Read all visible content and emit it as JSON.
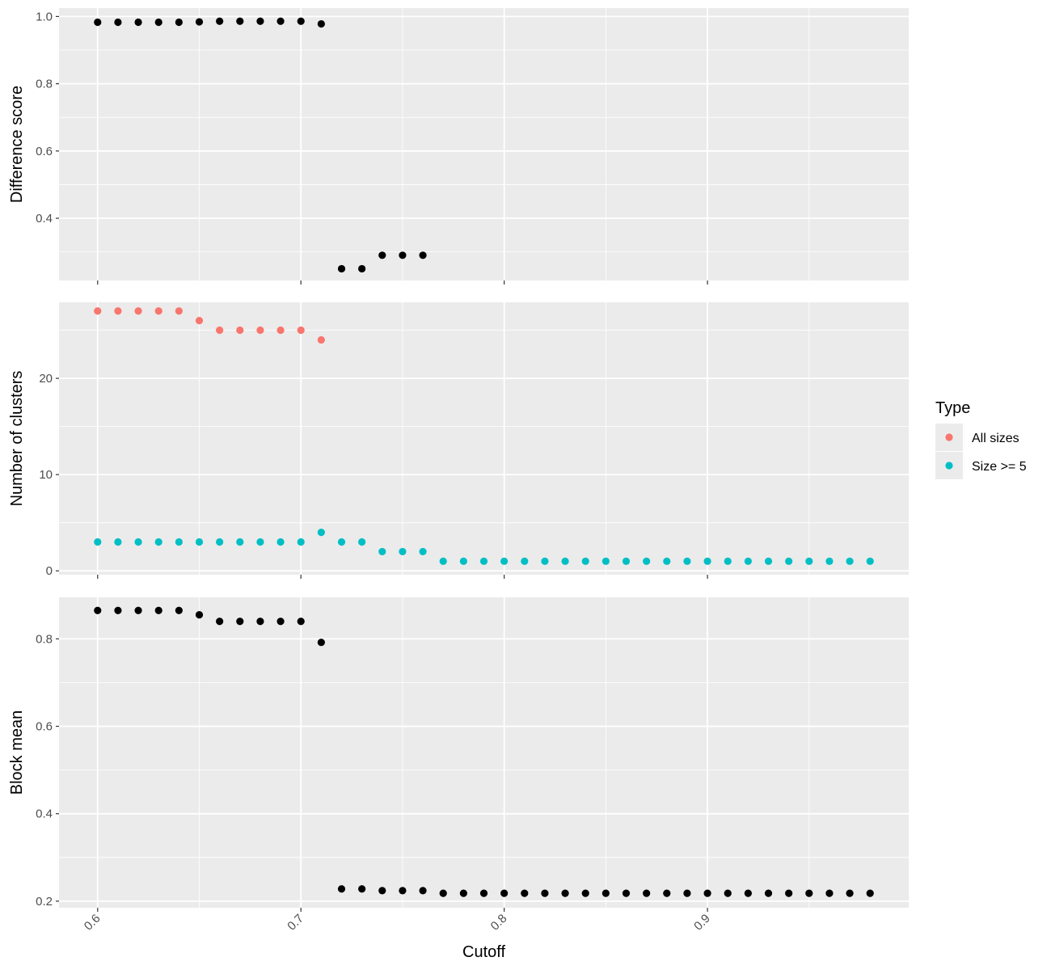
{
  "chart_data": {
    "type": "scatter",
    "xlabel": "Cutoff",
    "x_ticks": [
      0.6,
      0.7,
      0.8,
      0.9
    ],
    "x_tick_labels": [
      "0.6",
      "0.7",
      "0.8",
      "0.9"
    ],
    "xlim": [
      0.581,
      0.999
    ],
    "grid": true,
    "legend": {
      "title": "Type",
      "placement": "right",
      "entries": [
        {
          "label": "All sizes",
          "color": "#F8766D"
        },
        {
          "label": "Size >= 5",
          "color": "#00BFC4"
        }
      ]
    },
    "panels": [
      {
        "ylabel": "Difference score",
        "ylim": [
          0.215,
          1.025
        ],
        "y_ticks": [
          0.4,
          0.6,
          0.8,
          1.0
        ],
        "y_tick_labels": [
          "0.4",
          "0.6",
          "0.8",
          "1.0"
        ],
        "series": [
          {
            "color": "#000000",
            "x": [
              0.6,
              0.61,
              0.62,
              0.63,
              0.64,
              0.65,
              0.66,
              0.67,
              0.68,
              0.69,
              0.7,
              0.71,
              0.72,
              0.73,
              0.74,
              0.75,
              0.76
            ],
            "y": [
              0.983,
              0.983,
              0.983,
              0.983,
              0.983,
              0.984,
              0.986,
              0.986,
              0.986,
              0.986,
              0.986,
              0.978,
              0.25,
              0.25,
              0.29,
              0.29,
              0.29
            ]
          }
        ]
      },
      {
        "ylabel": "Number of clusters",
        "ylim": [
          -0.4,
          27.9
        ],
        "y_ticks": [
          0,
          10,
          20
        ],
        "y_tick_labels": [
          "0",
          "10",
          "20"
        ],
        "series": [
          {
            "name": "All sizes",
            "color": "#F8766D",
            "x": [
              0.6,
              0.61,
              0.62,
              0.63,
              0.64,
              0.65,
              0.66,
              0.67,
              0.68,
              0.69,
              0.7,
              0.71
            ],
            "y": [
              27,
              27,
              27,
              27,
              27,
              26,
              25,
              25,
              25,
              25,
              25,
              24
            ]
          },
          {
            "name": "Size >= 5",
            "color": "#00BFC4",
            "x": [
              0.6,
              0.61,
              0.62,
              0.63,
              0.64,
              0.65,
              0.66,
              0.67,
              0.68,
              0.69,
              0.7,
              0.71,
              0.72,
              0.73,
              0.74,
              0.75,
              0.76,
              0.77,
              0.78,
              0.79,
              0.8,
              0.81,
              0.82,
              0.83,
              0.84,
              0.85,
              0.86,
              0.87,
              0.88,
              0.89,
              0.9,
              0.91,
              0.92,
              0.93,
              0.94,
              0.95,
              0.96,
              0.97,
              0.98
            ],
            "y": [
              3,
              3,
              3,
              3,
              3,
              3,
              3,
              3,
              3,
              3,
              3,
              4,
              3,
              3,
              2,
              2,
              2,
              1,
              1,
              1,
              1,
              1,
              1,
              1,
              1,
              1,
              1,
              1,
              1,
              1,
              1,
              1,
              1,
              1,
              1,
              1,
              1,
              1,
              1
            ]
          }
        ]
      },
      {
        "ylabel": "Block mean",
        "ylim": [
          0.185,
          0.895
        ],
        "y_ticks": [
          0.2,
          0.4,
          0.6,
          0.8
        ],
        "y_tick_labels": [
          "0.2",
          "0.4",
          "0.6",
          "0.8"
        ],
        "series": [
          {
            "color": "#000000",
            "x": [
              0.6,
              0.61,
              0.62,
              0.63,
              0.64,
              0.65,
              0.66,
              0.67,
              0.68,
              0.69,
              0.7,
              0.71,
              0.72,
              0.73,
              0.74,
              0.75,
              0.76,
              0.77,
              0.78,
              0.79,
              0.8,
              0.81,
              0.82,
              0.83,
              0.84,
              0.85,
              0.86,
              0.87,
              0.88,
              0.89,
              0.9,
              0.91,
              0.92,
              0.93,
              0.94,
              0.95,
              0.96,
              0.97,
              0.98
            ],
            "y": [
              0.865,
              0.865,
              0.865,
              0.865,
              0.865,
              0.855,
              0.84,
              0.84,
              0.84,
              0.84,
              0.84,
              0.792,
              0.228,
              0.228,
              0.224,
              0.224,
              0.224,
              0.218,
              0.218,
              0.218,
              0.218,
              0.218,
              0.218,
              0.218,
              0.218,
              0.218,
              0.218,
              0.218,
              0.218,
              0.218,
              0.218,
              0.218,
              0.218,
              0.218,
              0.218,
              0.218,
              0.218,
              0.218,
              0.218
            ]
          }
        ]
      }
    ]
  }
}
